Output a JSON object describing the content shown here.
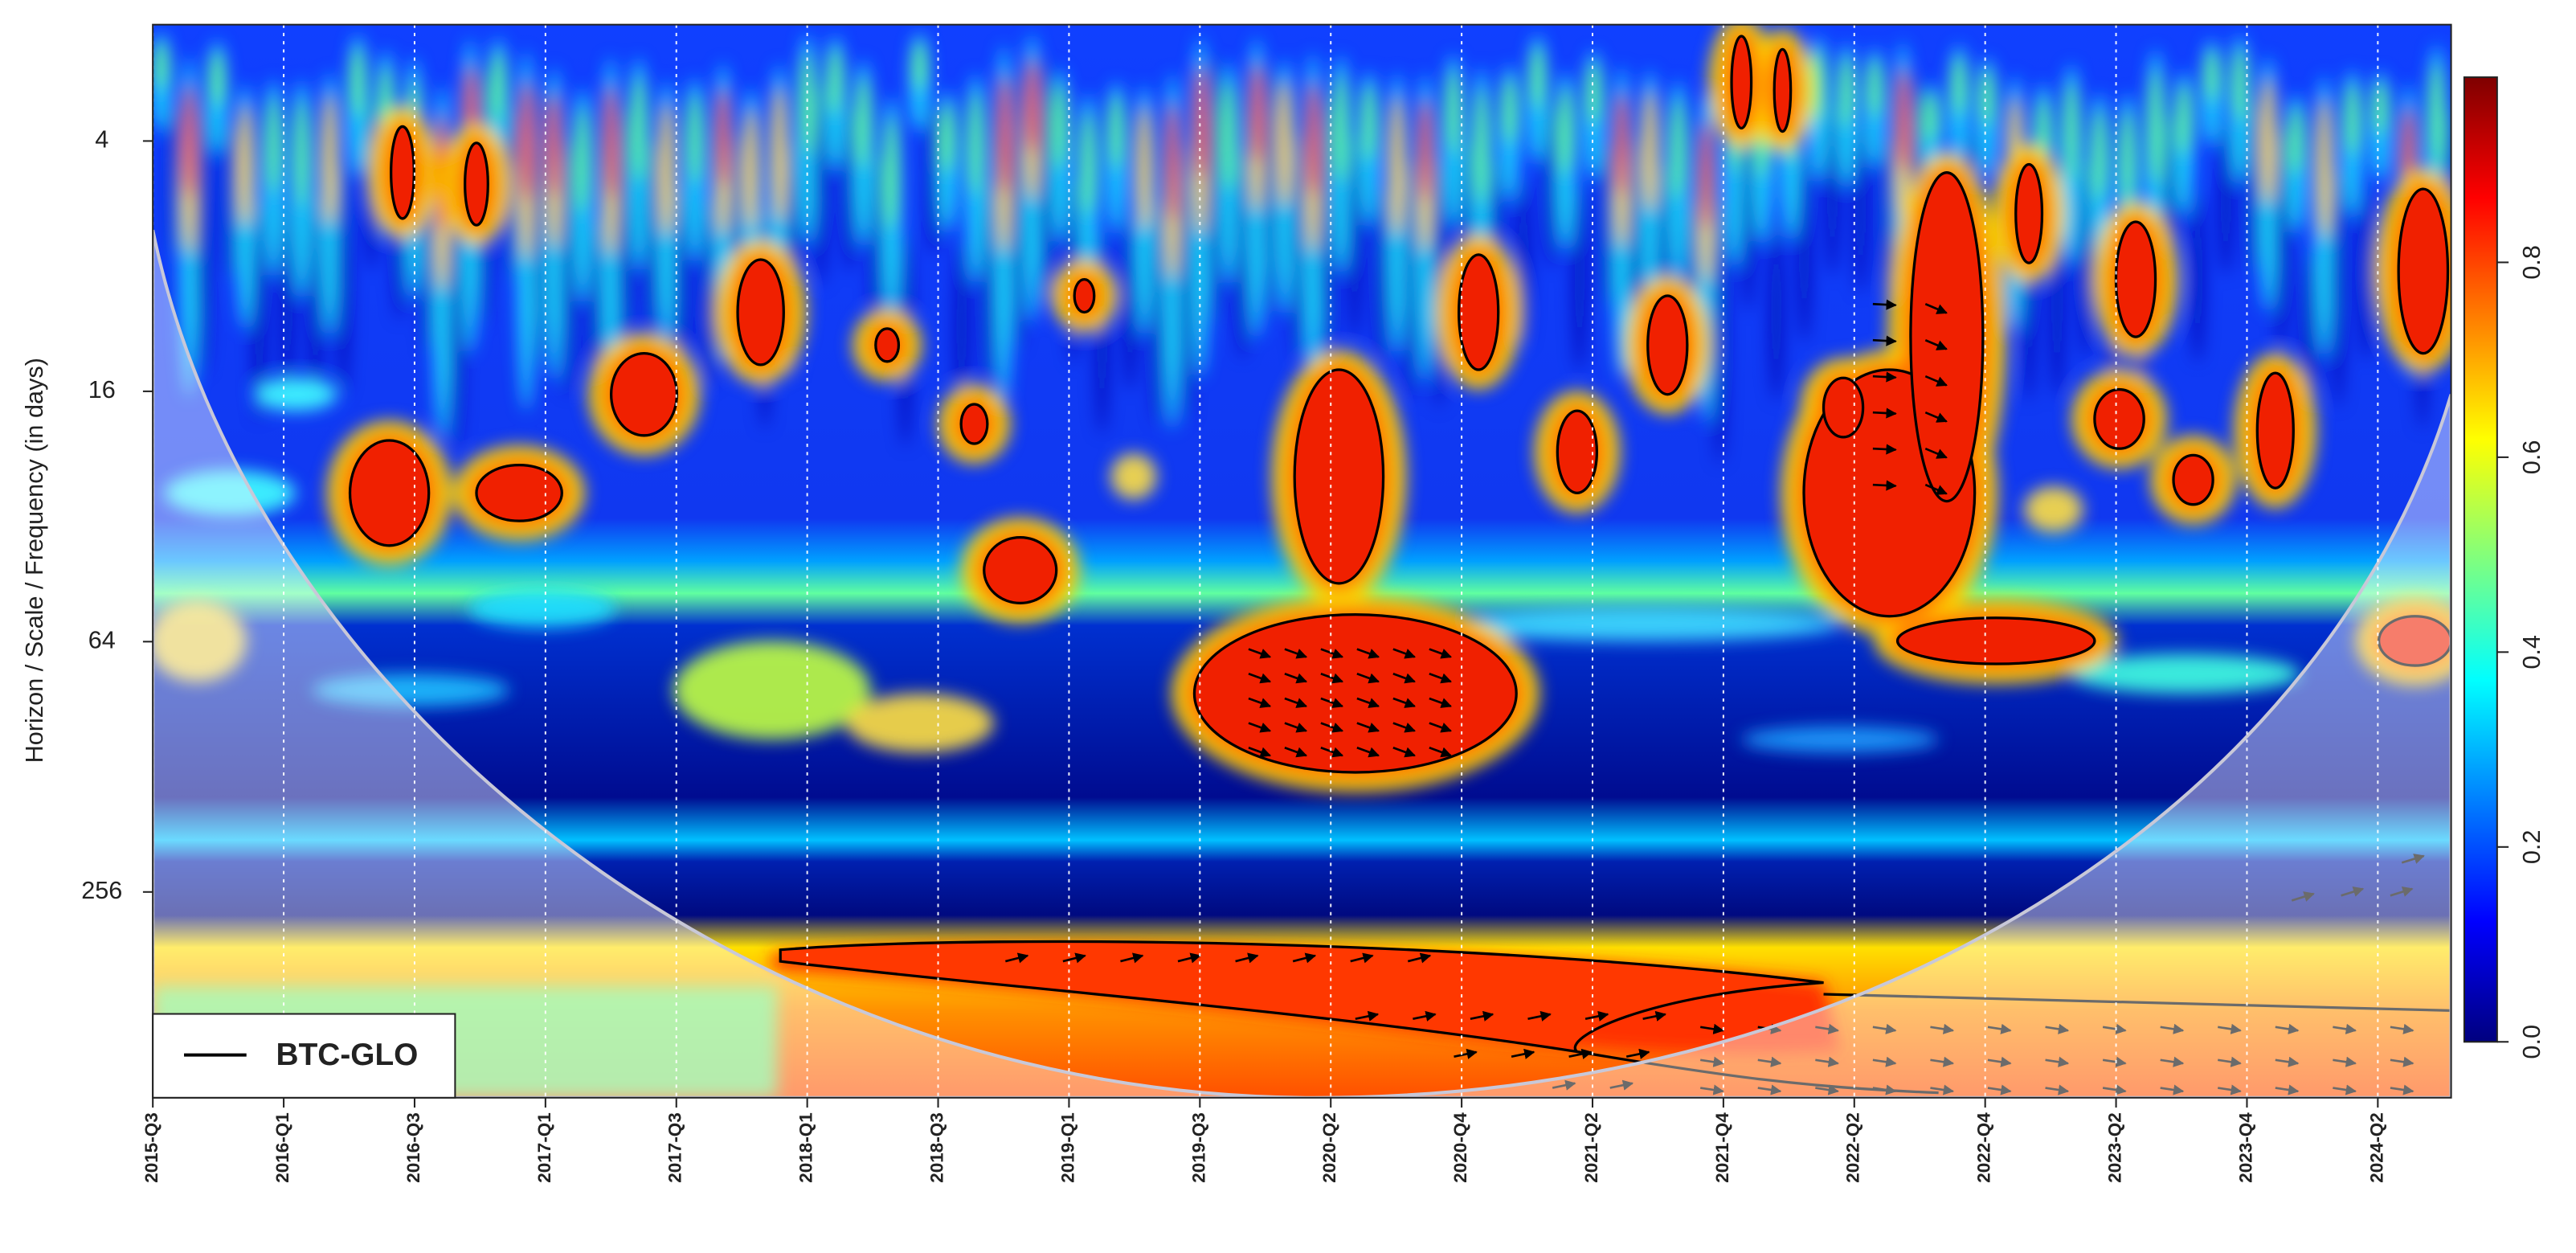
{
  "chart_data": {
    "type": "wavelet-coherence",
    "y_label": "Horizon / Scale / Frequency (in days)",
    "xticks": [
      {
        "value": 0,
        "label": "2015-Q3"
      },
      {
        "value": 1,
        "label": "2016-Q1"
      },
      {
        "value": 2,
        "label": "2016-Q3"
      },
      {
        "value": 3,
        "label": "2017-Q1"
      },
      {
        "value": 4,
        "label": "2017-Q3"
      },
      {
        "value": 5,
        "label": "2018-Q1"
      },
      {
        "value": 6,
        "label": "2018-Q3"
      },
      {
        "value": 7,
        "label": "2019-Q1"
      },
      {
        "value": 8,
        "label": "2019-Q3"
      },
      {
        "value": 9,
        "label": "2020-Q2"
      },
      {
        "value": 10,
        "label": "2020-Q4"
      },
      {
        "value": 11,
        "label": "2021-Q2"
      },
      {
        "value": 12,
        "label": "2021-Q4"
      },
      {
        "value": 13,
        "label": "2022-Q2"
      },
      {
        "value": 14,
        "label": "2022-Q4"
      },
      {
        "value": 15,
        "label": "2023-Q2"
      },
      {
        "value": 16,
        "label": "2023-Q4"
      },
      {
        "value": 17,
        "label": "2024-Q2"
      }
    ],
    "xlim": [
      0,
      17.56
    ],
    "yticks": [
      4,
      16,
      64,
      256
    ],
    "ylim": [
      2.1,
      800
    ],
    "y_log": true,
    "y_inverted": true,
    "grid": true,
    "colorbar": {
      "ticks": [
        {
          "value": 0,
          "label": "0.0"
        },
        0.2,
        0.4,
        0.6,
        0.8
      ],
      "lim": [
        0,
        0.99
      ],
      "colors": [
        "#00007f",
        "#0000ff",
        "#007fff",
        "#00ffff",
        "#7fff7f",
        "#ffff00",
        "#ff7f00",
        "#ff0000",
        "#7f0000"
      ]
    },
    "series": [
      {
        "name": "BTC-GLO",
        "color": "#000000"
      }
    ],
    "legend": "bottom-left"
  }
}
